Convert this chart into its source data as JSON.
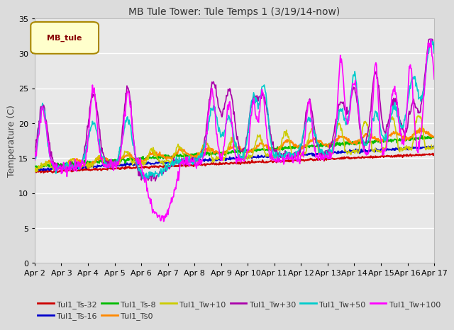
{
  "title": "MB Tule Tower: Tule Temps 1 (3/19/14-now)",
  "ylabel": "Temperature (C)",
  "ylim": [
    0,
    35
  ],
  "yticks": [
    0,
    5,
    10,
    15,
    20,
    25,
    30,
    35
  ],
  "bg_color": "#dcdcdc",
  "plot_bg_color": "#e8e8e8",
  "legend_box_label": "MB_tule",
  "series": [
    {
      "label": "Tul1_Ts-32",
      "color": "#cc0000"
    },
    {
      "label": "Tul1_Ts-16",
      "color": "#0000cc"
    },
    {
      "label": "Tul1_Ts-8",
      "color": "#00bb00"
    },
    {
      "label": "Tul1_Ts0",
      "color": "#ff8800"
    },
    {
      "label": "Tul1_Tw+10",
      "color": "#cccc00"
    },
    {
      "label": "Tul1_Tw+30",
      "color": "#aa00aa"
    },
    {
      "label": "Tul1_Tw+50",
      "color": "#00cccc"
    },
    {
      "label": "Tul1_Tw+100",
      "color": "#ff00ff"
    }
  ],
  "xtick_labels": [
    "Apr 2",
    "Apr 3",
    "Apr 4",
    "Apr 5",
    "Apr 6",
    "Apr 7",
    "Apr 8",
    "Apr 9",
    "Apr 10",
    "Apr 11",
    "Apr 12",
    "Apr 13",
    "Apr 14",
    "Apr 15",
    "Apr 16",
    "Apr 17"
  ],
  "n_points": 720,
  "title_fontsize": 10,
  "tick_fontsize": 8,
  "legend_fontsize": 8
}
